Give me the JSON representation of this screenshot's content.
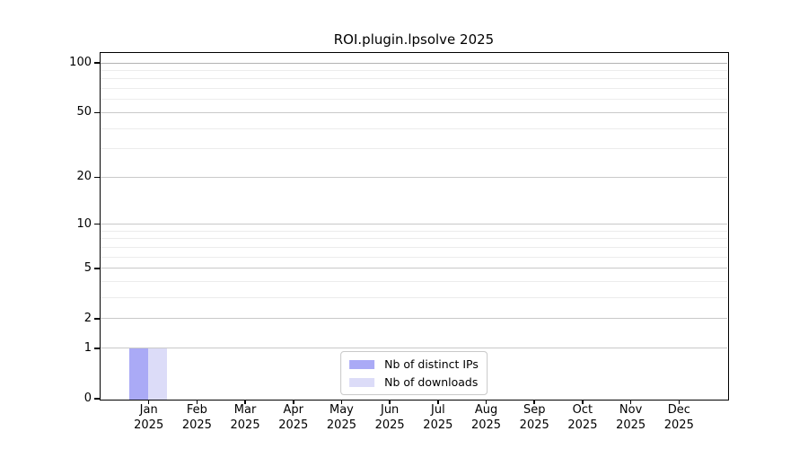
{
  "chart": {
    "title": "ROI.plugin.lpsolve 2025"
  },
  "chart_data": {
    "type": "bar",
    "title": "ROI.plugin.lpsolve 2025",
    "categories": [
      "Jan 2025",
      "Feb 2025",
      "Mar 2025",
      "Apr 2025",
      "May 2025",
      "Jun 2025",
      "Jul 2025",
      "Aug 2025",
      "Sep 2025",
      "Oct 2025",
      "Nov 2025",
      "Dec 2025"
    ],
    "series": [
      {
        "name": "Nb of distinct IPs",
        "color": "#aaaaf6",
        "values": [
          1,
          0,
          0,
          0,
          0,
          0,
          0,
          0,
          0,
          0,
          0,
          0
        ]
      },
      {
        "name": "Nb of downloads",
        "color": "#dcdcf8",
        "values": [
          1,
          0,
          0,
          0,
          0,
          0,
          0,
          0,
          0,
          0,
          0,
          0
        ]
      }
    ],
    "xlabel": "",
    "ylabel": "",
    "y_scale": "log1p",
    "y_axis_ticks": [
      0,
      1,
      2,
      5,
      10,
      20,
      50,
      100
    ],
    "y_minor_gridlines": [
      3,
      4,
      6,
      7,
      8,
      9,
      30,
      40,
      60,
      70,
      80,
      90
    ],
    "ylim": [
      0,
      115
    ],
    "grid": true,
    "legend_position": "lower center"
  },
  "colors": {
    "bar_distinct_ips": "#aaaaf6",
    "bar_downloads": "#dcdcf8",
    "grid_major": "#c9c9c9",
    "grid_line_100": "#b2b2b2",
    "grid_minor": "#ececec",
    "axis": "#000000",
    "legend_border": "#c9c9c9",
    "background": "#ffffff"
  }
}
